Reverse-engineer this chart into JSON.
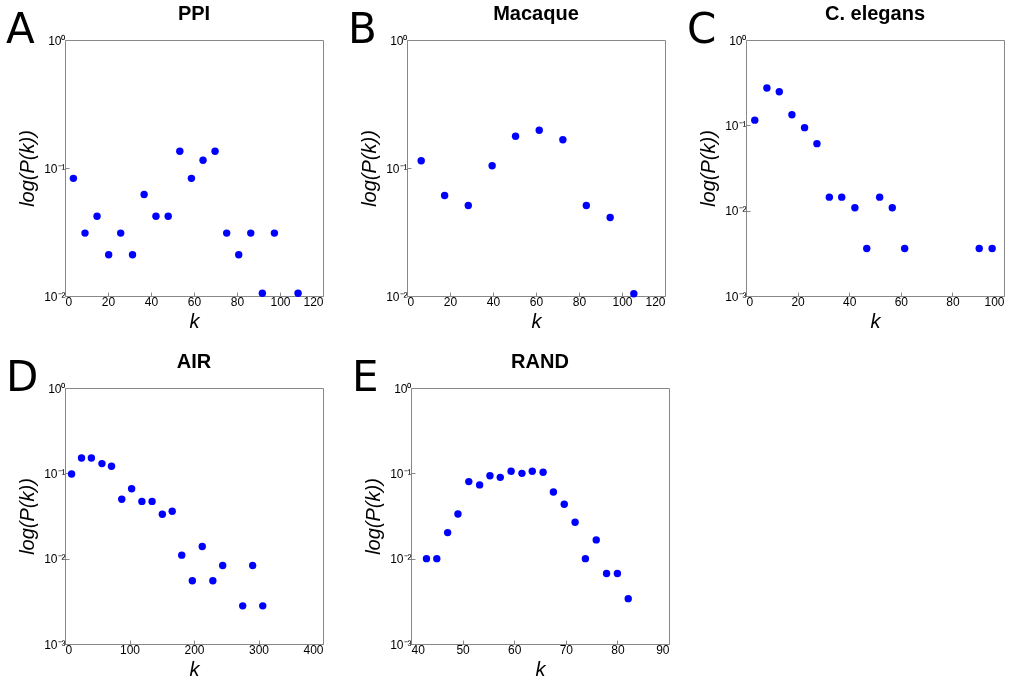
{
  "chart_data": [
    {
      "type": "scatter",
      "title": "PPI",
      "xlabel": "k",
      "ylabel": "log(P(k))",
      "annotations": [
        "A"
      ],
      "marker": "circle",
      "log": "y",
      "xlim": [
        0,
        120
      ],
      "xticks": [
        0,
        20,
        40,
        60,
        80,
        100,
        120
      ],
      "ylim": [
        0.01,
        1
      ],
      "yticks": [
        {
          "value": 0.01,
          "label": "10⁻²"
        },
        {
          "value": 0.1,
          "label": "10⁻¹"
        },
        {
          "value": 1,
          "label": "10⁰"
        }
      ],
      "series": [
        {
          "color": "#0000ff",
          "x": [
            3.9,
            9.3,
            14.9,
            20.3,
            25.9,
            31.4,
            36.8,
            42.3,
            48,
            53.4,
            58.8,
            64.2,
            69.8,
            75.2,
            80.8,
            86.4,
            91.8,
            97.4,
            108.4
          ],
          "values": [
            0.083,
            0.031,
            0.042,
            0.021,
            0.031,
            0.021,
            0.062,
            0.042,
            0.042,
            0.135,
            0.083,
            0.115,
            0.135,
            0.031,
            0.021,
            0.031,
            0.0105,
            0.031,
            0.0105
          ]
        }
      ]
    },
    {
      "type": "scatter",
      "title": "Macaque",
      "xlabel": "k",
      "ylabel": "log(P(k))",
      "annotations": [
        "B"
      ],
      "marker": "circle",
      "log": "y",
      "xlim": [
        0,
        120
      ],
      "xticks": [
        0,
        20,
        40,
        60,
        80,
        100,
        120
      ],
      "ylim": [
        0.01,
        1
      ],
      "yticks": [
        {
          "value": 0.01,
          "label": "10⁻²"
        },
        {
          "value": 0.1,
          "label": "10⁻¹"
        },
        {
          "value": 1,
          "label": "10⁰"
        }
      ],
      "series": [
        {
          "color": "#0000ff",
          "x": [
            6.6,
            17.5,
            28.5,
            39.6,
            50.5,
            61.5,
            72.5,
            83.4,
            94.5,
            105.5
          ],
          "values": [
            0.114,
            0.061,
            0.051,
            0.104,
            0.177,
            0.197,
            0.166,
            0.051,
            0.041,
            0.0104
          ]
        }
      ]
    },
    {
      "type": "scatter",
      "title": "C. elegans",
      "xlabel": "k",
      "ylabel": "log(P(k))",
      "annotations": [
        "C"
      ],
      "marker": "circle",
      "log": "y",
      "xlim": [
        0,
        100
      ],
      "xticks": [
        0,
        20,
        40,
        60,
        80,
        100
      ],
      "ylim": [
        0.001,
        1
      ],
      "yticks": [
        {
          "value": 0.001,
          "label": "10⁻³"
        },
        {
          "value": 0.01,
          "label": "10⁻²"
        },
        {
          "value": 0.1,
          "label": "10⁻¹"
        },
        {
          "value": 1,
          "label": "10⁰"
        }
      ],
      "series": [
        {
          "color": "#0000ff",
          "x": [
            3.4,
            8.1,
            12.9,
            17.8,
            22.7,
            27.5,
            32.3,
            37.1,
            42.2,
            46.8,
            51.8,
            56.7,
            61.5,
            90.4,
            95.4
          ],
          "values": [
            0.115,
            0.274,
            0.248,
            0.133,
            0.094,
            0.061,
            0.0144,
            0.0144,
            0.0108,
            0.0036,
            0.0144,
            0.0108,
            0.0036,
            0.0036,
            0.0036
          ]
        }
      ]
    },
    {
      "type": "scatter",
      "title": "AIR",
      "xlabel": "k",
      "ylabel": "log(P(k))",
      "annotations": [
        "D"
      ],
      "marker": "circle",
      "log": "y",
      "xlim": [
        0,
        400
      ],
      "xticks": [
        0,
        100,
        200,
        300,
        400
      ],
      "ylim": [
        0.001,
        1
      ],
      "yticks": [
        {
          "value": 0.001,
          "label": "10⁻³"
        },
        {
          "value": 0.01,
          "label": "10⁻²"
        },
        {
          "value": 0.1,
          "label": "10⁻¹"
        },
        {
          "value": 1,
          "label": "10⁰"
        }
      ],
      "series": [
        {
          "color": "#0000ff",
          "x": [
            10.2,
            25.6,
            40.9,
            57.3,
            72.1,
            88,
            103.3,
            119.2,
            135,
            150.9,
            166.2,
            181,
            197.4,
            212.8,
            229.2,
            244.5,
            275.5,
            291,
            306.6
          ],
          "values": [
            0.098,
            0.151,
            0.151,
            0.13,
            0.121,
            0.0498,
            0.066,
            0.0469,
            0.0469,
            0.0332,
            0.036,
            0.011,
            0.0055,
            0.0139,
            0.0055,
            0.0083,
            0.0028,
            0.0083,
            0.0028
          ]
        }
      ]
    },
    {
      "type": "scatter",
      "title": "RAND",
      "xlabel": "k",
      "ylabel": "log(P(k))",
      "annotations": [
        "E"
      ],
      "marker": "circle",
      "log": "y",
      "xlim": [
        40,
        90
      ],
      "xticks": [
        40,
        50,
        60,
        70,
        80,
        90
      ],
      "ylim": [
        0.001,
        1
      ],
      "yticks": [
        {
          "value": 0.001,
          "label": "10⁻³"
        },
        {
          "value": 0.01,
          "label": "10⁻²"
        },
        {
          "value": 0.1,
          "label": "10⁻¹"
        },
        {
          "value": 1,
          "label": "10⁰"
        }
      ],
      "series": [
        {
          "color": "#0000ff",
          "x": [
            43,
            45,
            47.1,
            49.1,
            51.2,
            53.3,
            55.3,
            57.3,
            59.4,
            61.5,
            63.5,
            65.6,
            67.6,
            69.7,
            71.8,
            73.8,
            75.9,
            77.9,
            80,
            82.1
          ],
          "values": [
            0.01,
            0.01,
            0.0202,
            0.0334,
            0.08,
            0.0732,
            0.0938,
            0.0897,
            0.106,
            0.1,
            0.106,
            0.103,
            0.0603,
            0.0435,
            0.0267,
            0.01,
            0.0166,
            0.0067,
            0.0067,
            0.0034
          ]
        }
      ]
    }
  ]
}
